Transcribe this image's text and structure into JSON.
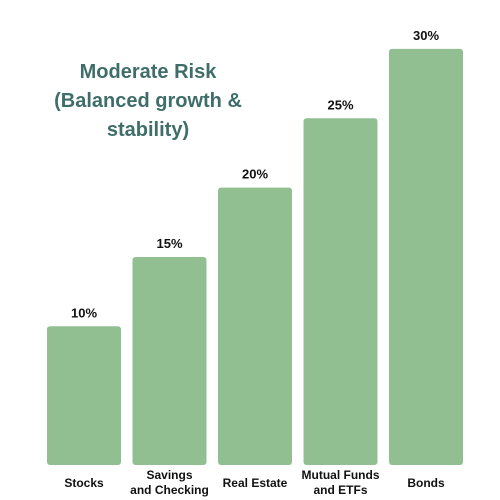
{
  "chart_data": {
    "type": "bar",
    "title_lines": [
      "Moderate Risk",
      "(Balanced growth &",
      "stability)"
    ],
    "categories": [
      [
        "Stocks"
      ],
      [
        "Savings",
        "and Checking"
      ],
      [
        "Real Estate"
      ],
      [
        "Mutual Funds",
        "and ETFs"
      ],
      [
        "Bonds"
      ]
    ],
    "values": [
      10,
      15,
      20,
      25,
      30
    ],
    "value_labels": [
      "10%",
      "15%",
      "20%",
      "25%",
      "30%"
    ],
    "unit": "%",
    "ylim": [
      0,
      30
    ],
    "grid": false,
    "legend": "none",
    "bar_color": "#91bf91",
    "title_color": "#3f6e6a",
    "label_color": "#111111"
  }
}
